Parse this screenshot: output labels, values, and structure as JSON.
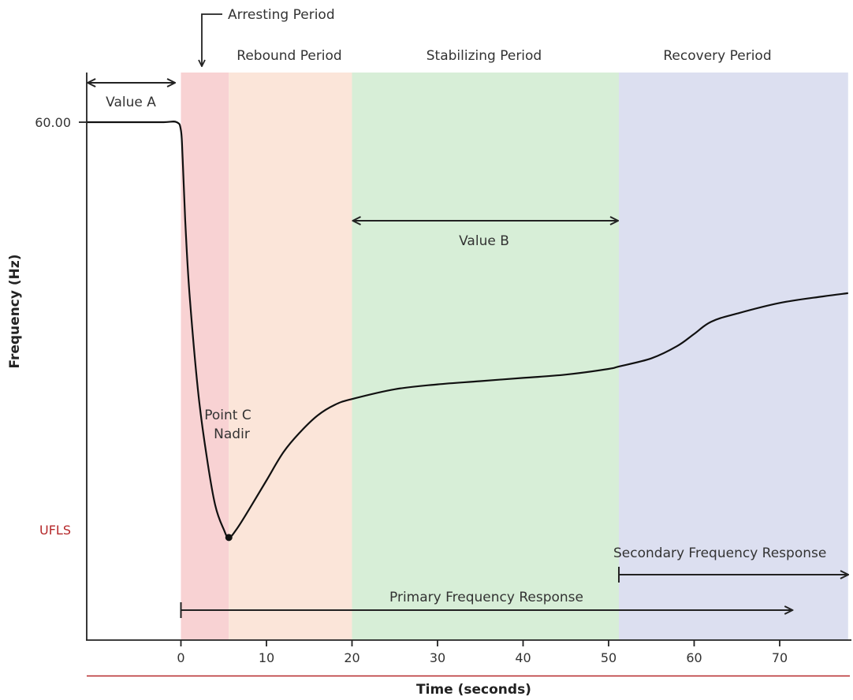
{
  "chart_data": {
    "type": "line",
    "xlabel": "Time (seconds)",
    "ylabel": "Frequency (Hz)",
    "xlim": [
      -11,
      78
    ],
    "x_ticks": [
      0,
      10,
      20,
      30,
      40,
      50,
      60,
      70
    ],
    "y_ticks": [
      {
        "value": 60.0,
        "label": "60.00"
      }
    ],
    "ylim": [
      59.3,
      60.06
    ],
    "periods": [
      {
        "name": "Arresting Period",
        "x": [
          0,
          5.6
        ],
        "color": "#f8d2d3"
      },
      {
        "name": "Rebound Period",
        "x": [
          5.6,
          20
        ],
        "color": "#fbe5d9"
      },
      {
        "name": "Stabilizing Period",
        "x": [
          20,
          51.2
        ],
        "color": "#d7eed7"
      },
      {
        "name": "Recovery Period",
        "x": [
          51.2,
          78
        ],
        "color": "#dcdff0"
      }
    ],
    "series": [
      {
        "name": "",
        "color": "#111111",
        "x": [
          -11,
          -8,
          -5,
          -2,
          -0.5,
          0,
          0.2,
          0.5,
          1,
          2,
          3,
          4,
          5,
          5.6,
          6.5,
          8,
          10,
          12,
          14,
          16,
          18,
          20,
          25,
          30,
          35,
          40,
          45,
          50,
          51.2,
          55,
          58,
          60,
          62,
          65,
          70,
          75,
          78
        ],
        "y": [
          60.0,
          60.0,
          60.0,
          60.0,
          60.0,
          59.99,
          59.955,
          59.88,
          59.79,
          59.67,
          59.59,
          59.53,
          59.5,
          59.49,
          59.5,
          59.525,
          59.56,
          59.595,
          59.62,
          59.64,
          59.653,
          59.66,
          59.672,
          59.678,
          59.682,
          59.686,
          59.69,
          59.697,
          59.7,
          59.71,
          59.725,
          59.74,
          59.755,
          59.765,
          59.778,
          59.786,
          59.79
        ]
      }
    ],
    "ufls": {
      "label": "UFLS",
      "y": 59.32,
      "color": "#b5282a"
    },
    "annotations": {
      "value_a": {
        "label": "Value A",
        "x": [
          -11,
          -0.5
        ]
      },
      "value_b": {
        "label": "Value B",
        "x": [
          20,
          51.2
        ]
      },
      "nadir": {
        "label_line1": "Point C",
        "label_line2": "Nadir",
        "x": 5.6,
        "y": 59.49
      },
      "arresting_marker_x": 2.6,
      "primary_response": {
        "label": "Primary Frequency Response",
        "x": [
          0,
          71.5
        ]
      },
      "secondary_response": {
        "label": "Secondary Frequency Response",
        "x": [
          51.2,
          78
        ]
      }
    }
  }
}
